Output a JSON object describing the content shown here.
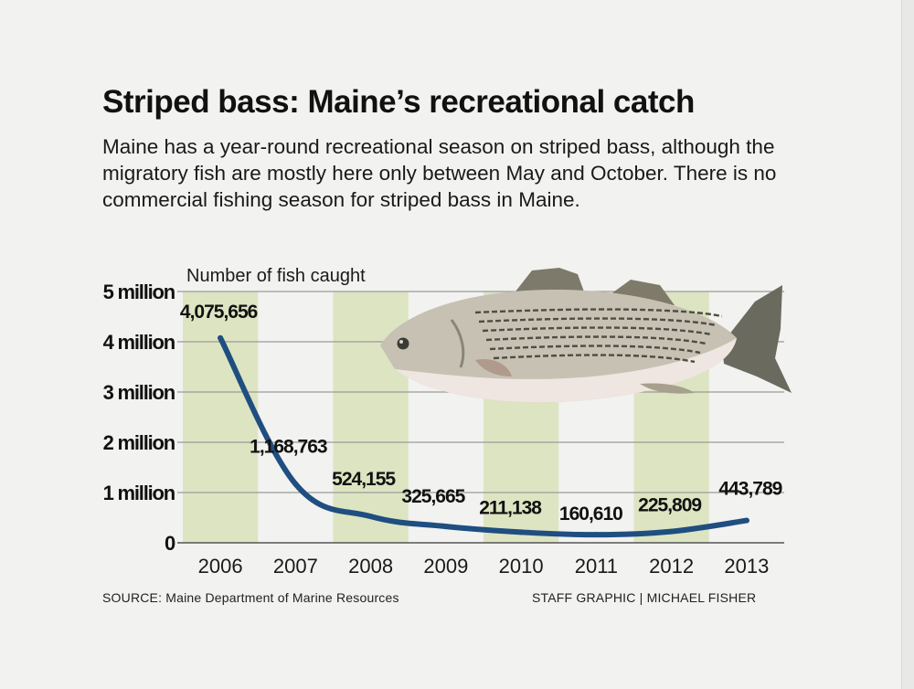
{
  "title": "Striped bass: Maine’s recreational catch",
  "subtitle": "Maine has a year-round recreational season on striped bass, although the migratory fish are mostly here only between May and October. There is no commercial fishing season for striped bass in Maine.",
  "source": "SOURCE: Maine Department of Marine Resources",
  "credit": "STAFF GRAPHIC | MICHAEL FISHER",
  "chart_data": {
    "type": "line",
    "ylabel": "Number of fish caught",
    "x": [
      "2006",
      "2007",
      "2008",
      "2009",
      "2010",
      "2011",
      "2012",
      "2013"
    ],
    "series": [
      {
        "values": [
          4075656,
          1168763,
          524155,
          325665,
          211138,
          160610,
          225809,
          443789
        ],
        "labels": [
          "4,075,656",
          "1,168,763",
          "524,155",
          "325,665",
          "211,138",
          "160,610",
          "225,809",
          "443,789"
        ]
      }
    ],
    "ylim": [
      0,
      5000000
    ],
    "yticks": [
      {
        "value": 0,
        "label": "0"
      },
      {
        "value": 1000000,
        "label": "1 million"
      },
      {
        "value": 2000000,
        "label": "2 million"
      },
      {
        "value": 3000000,
        "label": "3 million"
      },
      {
        "value": 4000000,
        "label": "4 million"
      },
      {
        "value": 5000000,
        "label": "5 million"
      }
    ],
    "line_color": "#1f4e80",
    "band_color": "#dde4c2",
    "grid": true
  }
}
